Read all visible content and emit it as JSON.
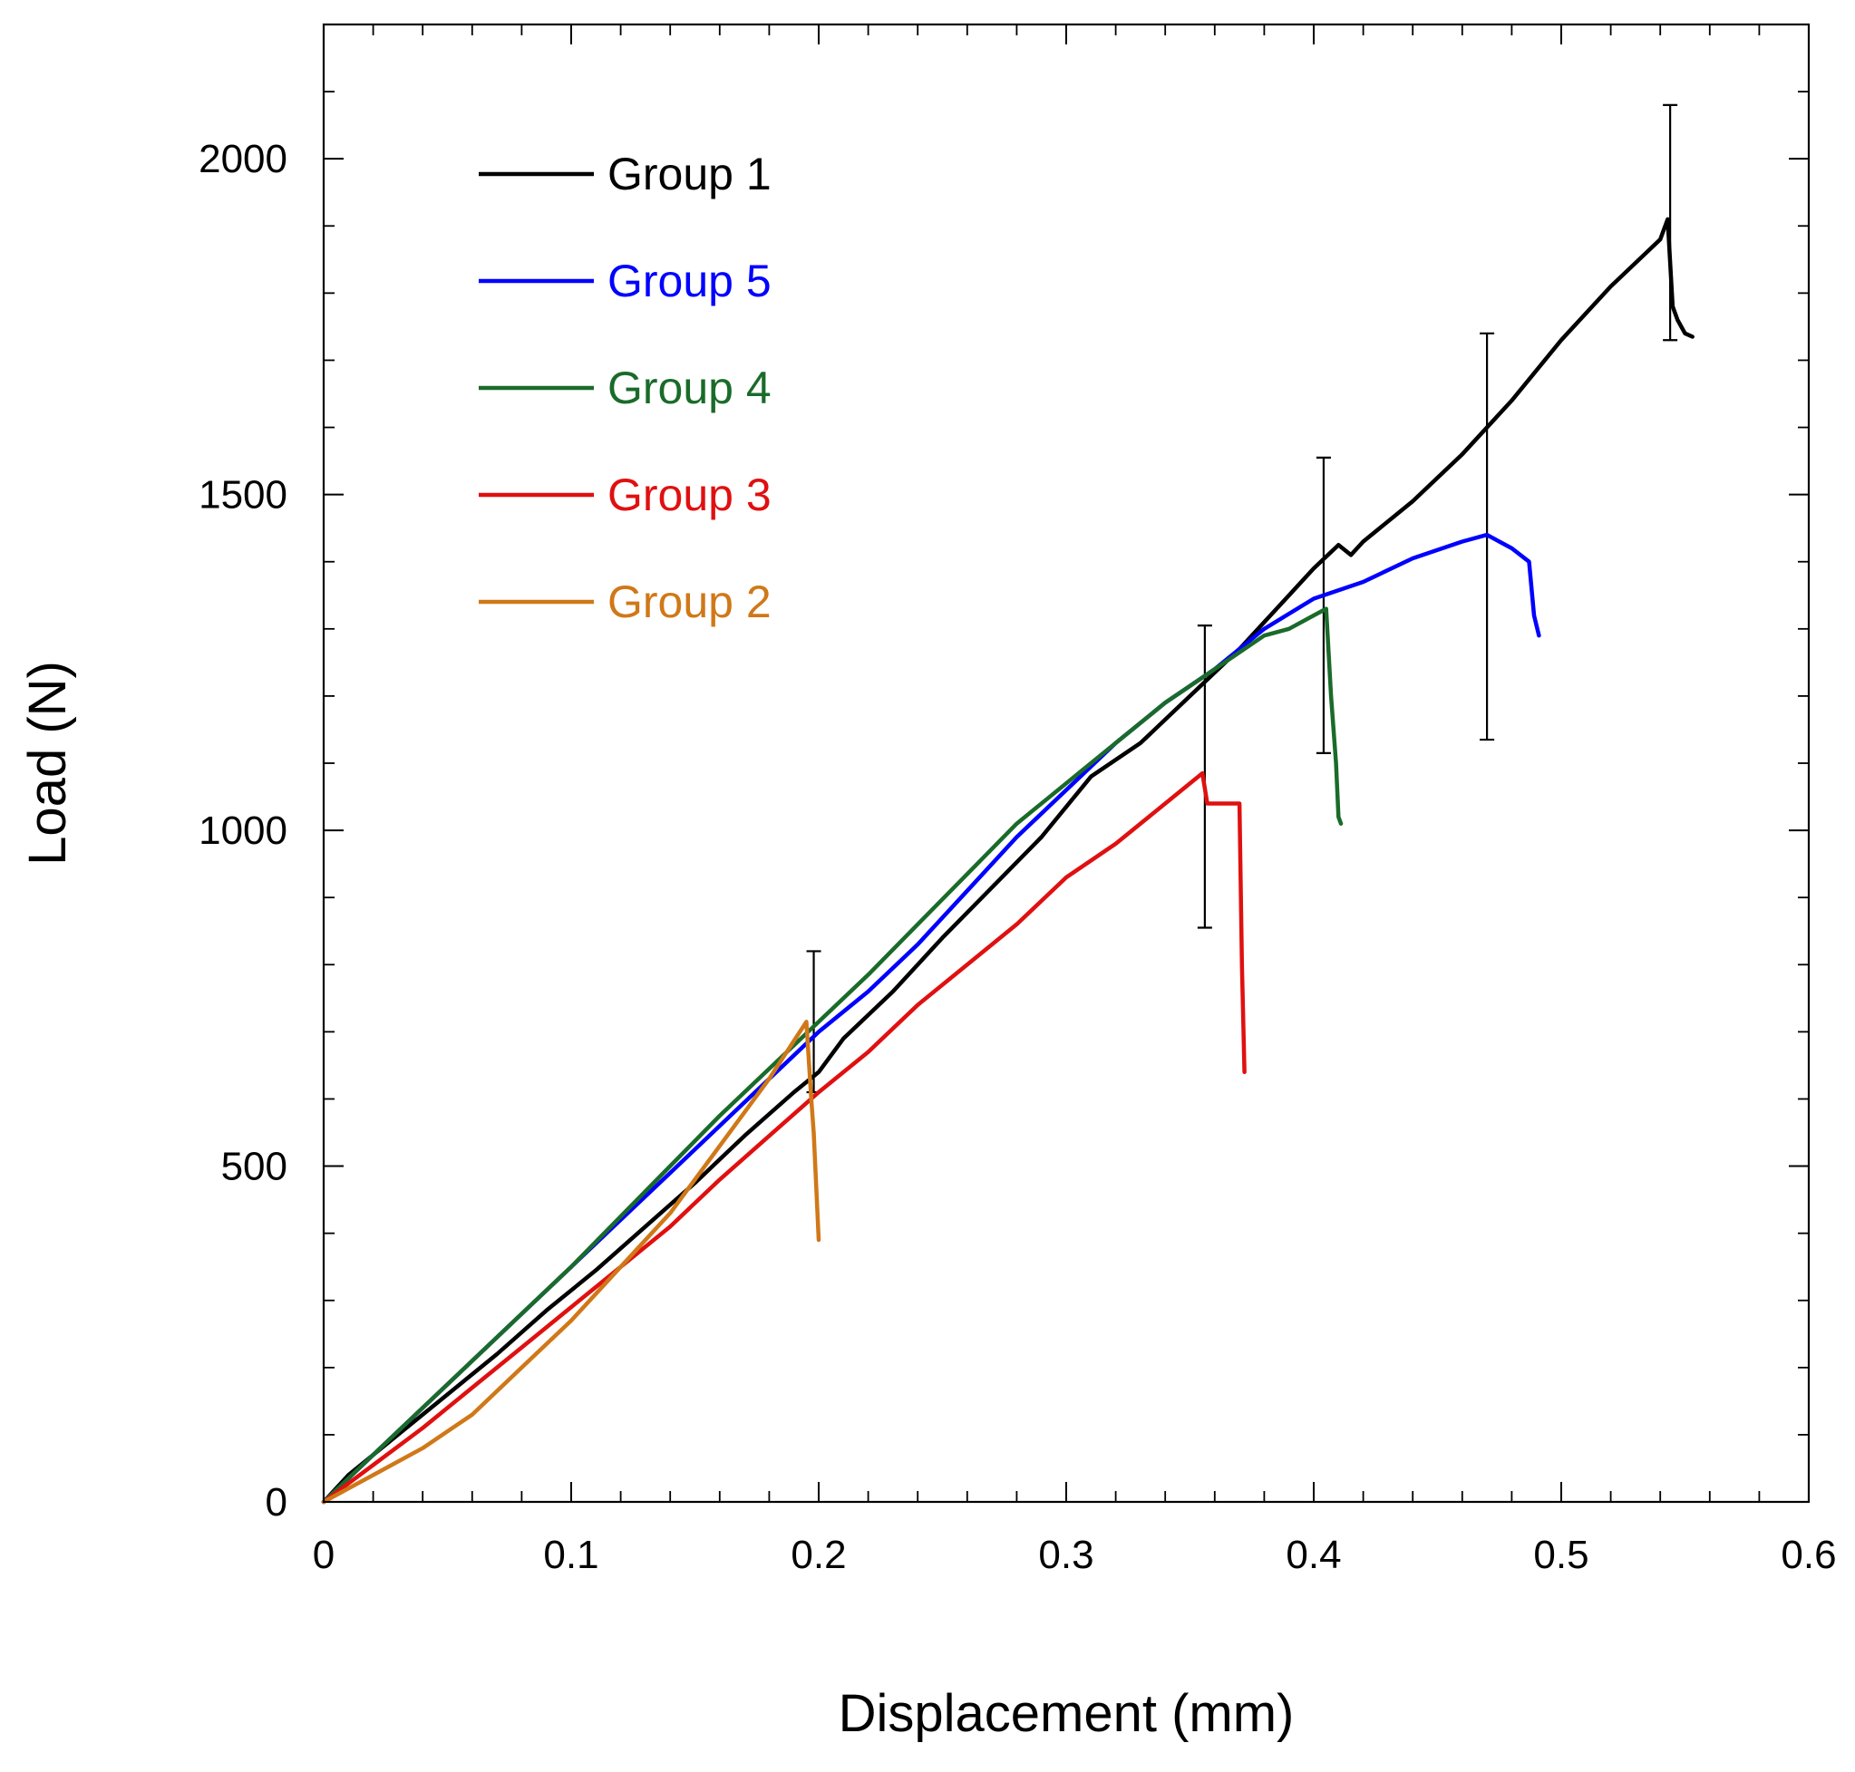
{
  "chart_data": {
    "type": "line",
    "title": "",
    "xlabel": "Displacement (mm)",
    "ylabel": "Load (N)",
    "xlim": [
      0,
      0.6
    ],
    "ylim": [
      0,
      2200
    ],
    "x_ticks": [
      0,
      0.1,
      0.2,
      0.3,
      0.4,
      0.5,
      0.6
    ],
    "x_tick_labels": [
      "0",
      "0.1",
      "0.2",
      "0.3",
      "0.4",
      "0.5",
      "0.6"
    ],
    "y_ticks": [
      0,
      500,
      1000,
      1500,
      2000
    ],
    "y_tick_labels": [
      "0",
      "500",
      "1000",
      "1500",
      "2000"
    ],
    "grid": false,
    "legend_position": "top-left",
    "series": [
      {
        "name": "Group 1",
        "color": "#000000",
        "x": [
          0,
          0.01,
          0.03,
          0.05,
          0.07,
          0.09,
          0.11,
          0.13,
          0.15,
          0.17,
          0.19,
          0.2,
          0.21,
          0.23,
          0.25,
          0.27,
          0.29,
          0.31,
          0.33,
          0.35,
          0.37,
          0.39,
          0.4,
          0.41,
          0.415,
          0.42,
          0.44,
          0.46,
          0.48,
          0.5,
          0.52,
          0.54,
          0.543,
          0.545,
          0.547,
          0.55,
          0.553
        ],
        "y": [
          0,
          40,
          100,
          160,
          220,
          285,
          345,
          410,
          475,
          545,
          610,
          640,
          690,
          760,
          840,
          915,
          990,
          1080,
          1130,
          1200,
          1270,
          1350,
          1390,
          1425,
          1410,
          1430,
          1490,
          1560,
          1640,
          1730,
          1810,
          1880,
          1910,
          1780,
          1760,
          1740,
          1735
        ]
      },
      {
        "name": "Group 5",
        "color": "#0000ff",
        "x": [
          0,
          0.02,
          0.04,
          0.06,
          0.08,
          0.1,
          0.12,
          0.14,
          0.16,
          0.18,
          0.2,
          0.22,
          0.24,
          0.26,
          0.28,
          0.3,
          0.32,
          0.34,
          0.36,
          0.38,
          0.4,
          0.42,
          0.44,
          0.46,
          0.47,
          0.48,
          0.487,
          0.489,
          0.491
        ],
        "y": [
          0,
          70,
          140,
          210,
          280,
          350,
          420,
          490,
          560,
          630,
          700,
          760,
          830,
          910,
          990,
          1060,
          1130,
          1190,
          1240,
          1300,
          1345,
          1370,
          1405,
          1430,
          1440,
          1420,
          1400,
          1320,
          1290
        ]
      },
      {
        "name": "Group 4",
        "color": "#1a6b2a",
        "x": [
          0,
          0.02,
          0.04,
          0.06,
          0.08,
          0.1,
          0.12,
          0.14,
          0.16,
          0.18,
          0.2,
          0.22,
          0.24,
          0.26,
          0.28,
          0.3,
          0.32,
          0.34,
          0.36,
          0.38,
          0.39,
          0.4,
          0.405,
          0.407,
          0.409,
          0.41,
          0.411
        ],
        "y": [
          0,
          70,
          140,
          210,
          280,
          350,
          425,
          500,
          575,
          645,
          715,
          785,
          860,
          935,
          1010,
          1070,
          1130,
          1190,
          1240,
          1290,
          1300,
          1320,
          1330,
          1200,
          1100,
          1020,
          1010
        ]
      },
      {
        "name": "Group 3",
        "color": "#e01010",
        "x": [
          0,
          0.02,
          0.04,
          0.06,
          0.08,
          0.1,
          0.12,
          0.14,
          0.16,
          0.18,
          0.2,
          0.22,
          0.24,
          0.26,
          0.28,
          0.3,
          0.32,
          0.34,
          0.355,
          0.357,
          0.36,
          0.37,
          0.371,
          0.372
        ],
        "y": [
          0,
          55,
          110,
          170,
          230,
          290,
          350,
          410,
          480,
          545,
          610,
          670,
          740,
          800,
          860,
          930,
          980,
          1040,
          1085,
          1040,
          1040,
          1040,
          800,
          640
        ]
      },
      {
        "name": "Group 2",
        "color": "#d07818",
        "x": [
          0,
          0.02,
          0.04,
          0.06,
          0.08,
          0.1,
          0.12,
          0.14,
          0.16,
          0.18,
          0.195,
          0.197,
          0.198,
          0.2
        ],
        "y": [
          0,
          40,
          80,
          130,
          200,
          270,
          350,
          430,
          530,
          630,
          715,
          600,
          550,
          390
        ]
      }
    ],
    "error_bars": [
      {
        "x": 0.198,
        "y_low": 610,
        "y_high": 820
      },
      {
        "x": 0.356,
        "y_low": 855,
        "y_high": 1305
      },
      {
        "x": 0.404,
        "y_low": 1115,
        "y_high": 1555
      },
      {
        "x": 0.47,
        "y_low": 1135,
        "y_high": 1740
      },
      {
        "x": 0.544,
        "y_low": 1730,
        "y_high": 2080
      }
    ]
  }
}
